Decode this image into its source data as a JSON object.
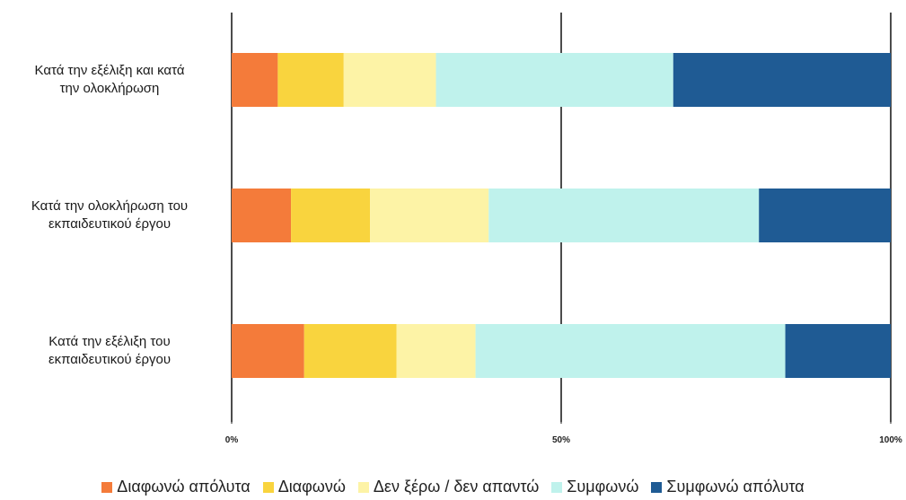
{
  "chart_data": {
    "type": "bar",
    "orientation": "horizontal",
    "stacked": "percent",
    "categories": [
      "Κατά την εξέλιξη και κατά την ολοκλήρωση",
      "Κατά την ολοκλήρωση του εκπαιδευτικού έργου",
      "Κατά την εξέλιξη του εκπαιδευτικού έργου"
    ],
    "category_lines": [
      [
        "Κατά την εξέλιξη και κατά",
        "την ολοκλήρωση"
      ],
      [
        "Κατά την ολοκλήρωση του",
        "εκπαιδευτικού έργου"
      ],
      [
        "Κατά την εξέλιξη του",
        "εκπαιδευτικού έργου"
      ]
    ],
    "series": [
      {
        "name": "Διαφωνώ απόλυτα",
        "color": "#f47b3a",
        "values": [
          7,
          9,
          11
        ]
      },
      {
        "name": "Διαφωνώ",
        "color": "#f9d43e",
        "values": [
          10,
          12,
          14
        ]
      },
      {
        "name": "Δεν ξέρω / δεν απαντώ",
        "color": "#fdf3a6",
        "values": [
          14,
          18,
          12
        ]
      },
      {
        "name": "Συμφωνώ",
        "color": "#bff2ec",
        "values": [
          36,
          41,
          47
        ]
      },
      {
        "name": "Συμφωνώ απόλυτα",
        "color": "#1f5b94",
        "values": [
          33,
          20,
          16
        ]
      }
    ],
    "x_ticks": [
      "0%",
      "50%",
      "100%"
    ],
    "xlim": [
      0,
      100
    ],
    "legend_position": "bottom",
    "grid": "vertical"
  }
}
